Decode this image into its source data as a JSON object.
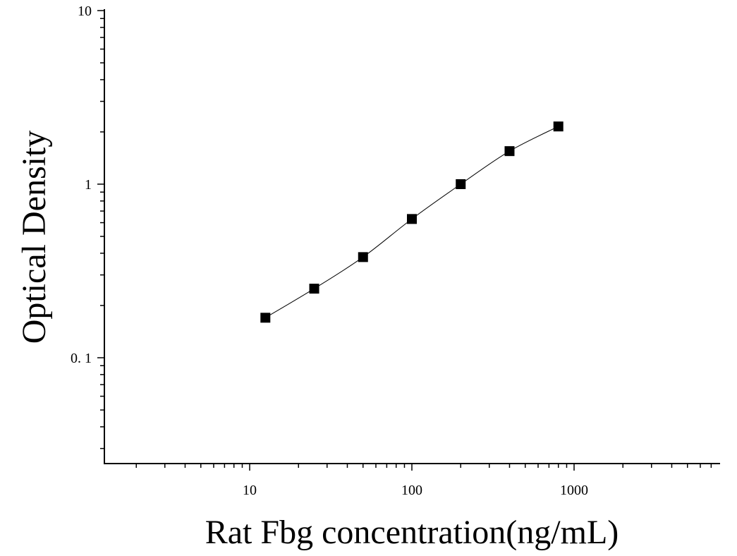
{
  "chart_data": {
    "type": "scatter",
    "title": "",
    "xlabel": "Rat Fbg concentration(ng/mL)",
    "ylabel": "Optical Density",
    "x_scale": "log",
    "y_scale": "log",
    "xlim": [
      1.3,
      900
    ],
    "ylim": [
      0.025,
      10
    ],
    "x_tick_labels": [
      {
        "value": 10,
        "label": "10"
      },
      {
        "value": 100,
        "label": "100"
      },
      {
        "value": 1000,
        "label": "1000"
      }
    ],
    "y_tick_labels": [
      {
        "value": 0.1,
        "label": "0. 1"
      },
      {
        "value": 1,
        "label": "1"
      },
      {
        "value": 10,
        "label": "10"
      }
    ],
    "grid": false,
    "legend": "none",
    "series": [
      {
        "x": [
          12.5,
          25,
          50,
          100,
          200,
          400,
          800
        ],
        "y": [
          0.17,
          0.25,
          0.38,
          0.63,
          1.0,
          1.55,
          2.15
        ],
        "marker": "square",
        "color": "#000000",
        "fit_curve": true
      }
    ]
  }
}
